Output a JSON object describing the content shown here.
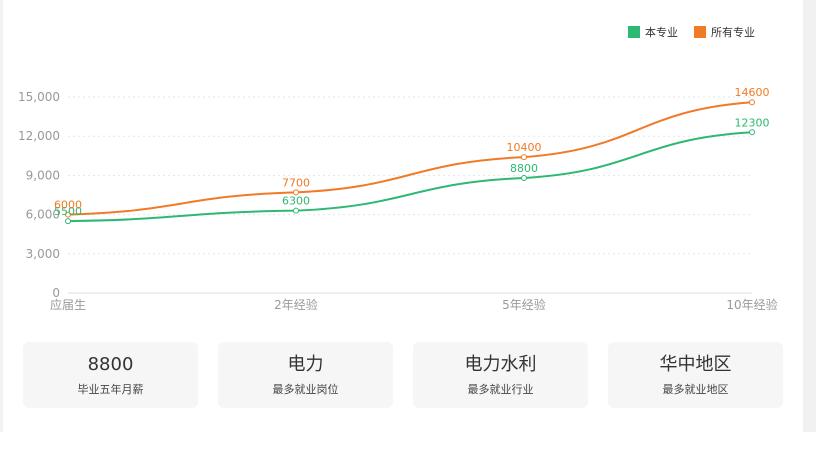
{
  "colors": {
    "series_primary": "#2eb872",
    "series_secondary": "#f07a26",
    "axis_text": "#999999",
    "grid": "#e6e6e6"
  },
  "legend": {
    "items": [
      {
        "label": "本专业",
        "color": "#2eb872"
      },
      {
        "label": "所有专业",
        "color": "#f07a26"
      }
    ]
  },
  "chart_data": {
    "type": "line",
    "categories": [
      "应届生",
      "2年经验",
      "5年经验",
      "10年经验"
    ],
    "series": [
      {
        "name": "本专业",
        "values": [
          5500,
          6300,
          8800,
          12300
        ],
        "color": "#2eb872"
      },
      {
        "name": "所有专业",
        "values": [
          6000,
          7700,
          10400,
          14600
        ],
        "color": "#f07a26"
      }
    ],
    "y_ticks": [
      "0",
      "3,000",
      "6,000",
      "9,000",
      "12,000",
      "15,000"
    ],
    "ylim": [
      0,
      15000
    ],
    "grid": true,
    "grid_style": "dotted",
    "legend_position": "top-right",
    "data_labels": true
  },
  "cards": [
    {
      "value": "8800",
      "label": "毕业五年月薪"
    },
    {
      "value": "电力",
      "label": "最多就业岗位"
    },
    {
      "value": "电力水利",
      "label": "最多就业行业"
    },
    {
      "value": "华中地区",
      "label": "最多就业地区"
    }
  ]
}
